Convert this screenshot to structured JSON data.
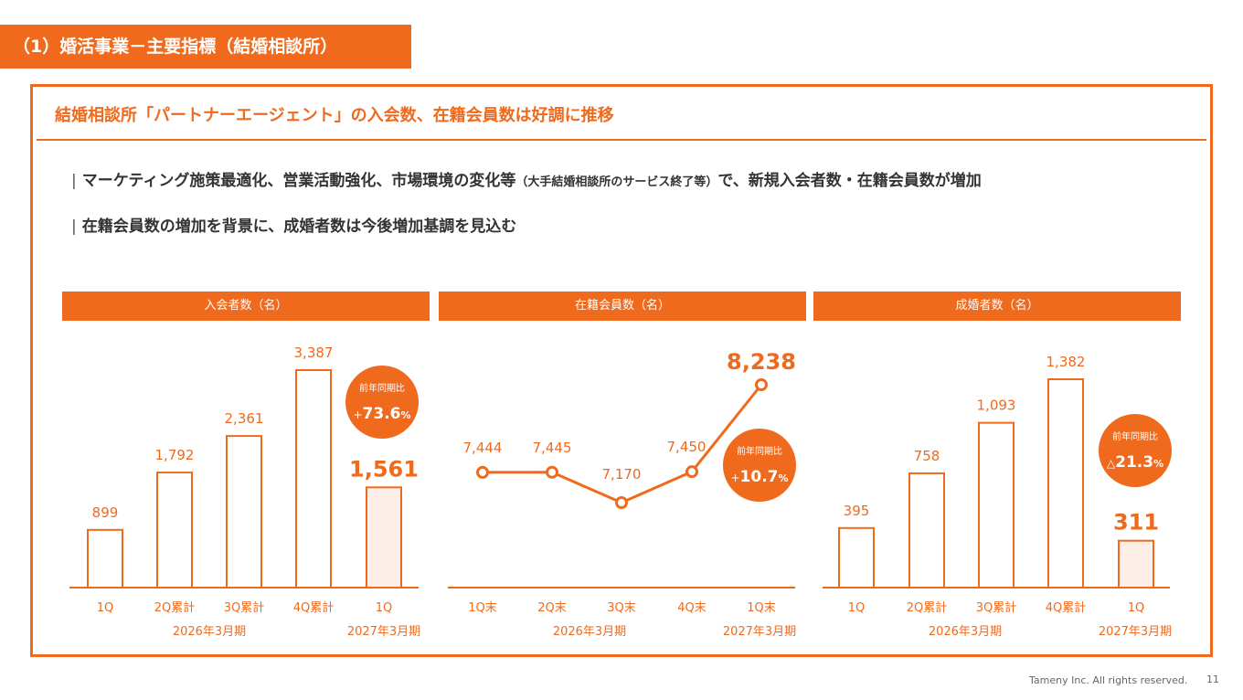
{
  "header": {
    "title": "（1）婚活事業－主要指標（結婚相談所）"
  },
  "subtitle": "結婚相談所「パートナーエージェント」の入会数、在籍会員数は好調に推移",
  "bullets": [
    {
      "marker": "|",
      "text_main": "マーケティング施策最適化、営業活動強化、市場環境の変化等",
      "text_small": "（大手結婚相談所のサービス終了等）",
      "text_end": "で、新規入会者数・在籍会員数が増加"
    },
    {
      "marker": "|",
      "text_main": "在籍会員数の増加を背景に、成婚者数は今後増加基調を見込む"
    }
  ],
  "colors": {
    "accent": "#ef6a1d",
    "highlight_fill": "#fdefe7",
    "axis": "#ef6a1d"
  },
  "chart_data": [
    {
      "type": "bar",
      "title": "入会者数（名）",
      "categories": [
        "1Q",
        "2Q累計",
        "3Q累計",
        "4Q累計",
        "1Q"
      ],
      "values": [
        899,
        1792,
        2361,
        3387,
        1561
      ],
      "value_labels": [
        "899",
        "1,792",
        "2,361",
        "3,387",
        "1,561"
      ],
      "highlight_index": 4,
      "period_labels": [
        "2026年3月期",
        "2027年3月期"
      ],
      "badge": {
        "label": "前年同期比",
        "sign": "+",
        "value": "73.6",
        "unit": "%"
      },
      "ylim": [
        0,
        3700
      ]
    },
    {
      "type": "line",
      "title": "在籍会員数（名）",
      "categories": [
        "1Q末",
        "2Q末",
        "3Q末",
        "4Q末",
        "1Q末"
      ],
      "values": [
        7444,
        7445,
        7170,
        7450,
        8238
      ],
      "value_labels": [
        "7,444",
        "7,445",
        "7,170",
        "7,450",
        "8,238"
      ],
      "highlight_index": 4,
      "period_labels": [
        "2026年3月期",
        "2027年3月期"
      ],
      "badge": {
        "label": "前年同期比",
        "sign": "+",
        "value": "10.7",
        "unit": "%"
      }
    },
    {
      "type": "bar",
      "title": "成婚者数（名）",
      "categories": [
        "1Q",
        "2Q累計",
        "3Q累計",
        "4Q累計",
        "1Q"
      ],
      "values": [
        395,
        758,
        1093,
        1382,
        311
      ],
      "value_labels": [
        "395",
        "758",
        "1,093",
        "1,382",
        "311"
      ],
      "highlight_index": 4,
      "period_labels": [
        "2026年3月期",
        "2027年3月期"
      ],
      "badge": {
        "label": "前年同期比",
        "sign": "△",
        "value": "21.3",
        "unit": "%"
      },
      "ylim": [
        0,
        1500
      ]
    }
  ],
  "footer": {
    "copyright": "Tameny Inc. All rights reserved.",
    "page": "11"
  }
}
